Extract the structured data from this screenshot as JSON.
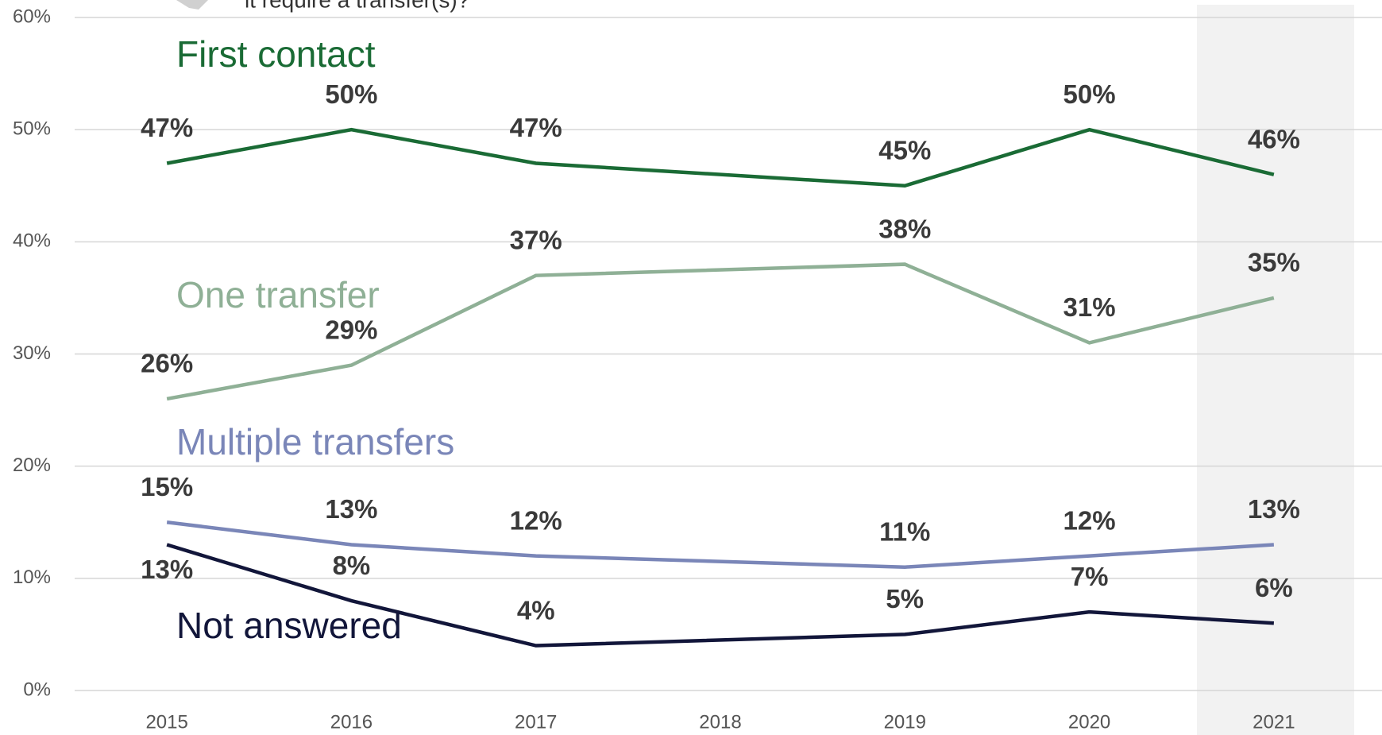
{
  "chart_data": {
    "type": "line",
    "annotation": "it require a transfer(s)?",
    "x": [
      2015,
      2016,
      2017,
      2019,
      2020,
      2021
    ],
    "xlim": [
      2014.5,
      2021.5
    ],
    "xticks": [
      2015,
      2016,
      2017,
      2018,
      2019,
      2020,
      2021
    ],
    "ylim": [
      0,
      60
    ],
    "yticks": [
      {
        "value": 0,
        "label": "0%"
      },
      {
        "value": 10,
        "label": "10%"
      },
      {
        "value": 20,
        "label": "20%"
      },
      {
        "value": 30,
        "label": "30%"
      },
      {
        "value": 40,
        "label": "40%"
      },
      {
        "value": 50,
        "label": "50%"
      },
      {
        "value": 60,
        "label": "60%"
      }
    ],
    "grid": true,
    "series": [
      {
        "name": "First contact",
        "color": "#1a6b35",
        "values": [
          47,
          50,
          47,
          45,
          50,
          46
        ],
        "value_labels": [
          "47%",
          "50%",
          "47%",
          "45%",
          "50%",
          "46%"
        ]
      },
      {
        "name": "One transfer",
        "color": "#8fb096",
        "values": [
          26,
          29,
          37,
          38,
          31,
          35
        ],
        "value_labels": [
          "26%",
          "29%",
          "37%",
          "38%",
          "31%",
          "35%"
        ]
      },
      {
        "name": "Multiple transfers",
        "color": "#7a86b8",
        "values": [
          15,
          13,
          12,
          11,
          12,
          13
        ],
        "value_labels": [
          "15%",
          "13%",
          "12%",
          "11%",
          "12%",
          "13%"
        ]
      },
      {
        "name": "Not answered",
        "color": "#12163a",
        "values": [
          13,
          8,
          4,
          5,
          7,
          6
        ],
        "value_labels": [
          "13%",
          "8%",
          "4%",
          "5%",
          "7%",
          "6%"
        ]
      }
    ]
  }
}
